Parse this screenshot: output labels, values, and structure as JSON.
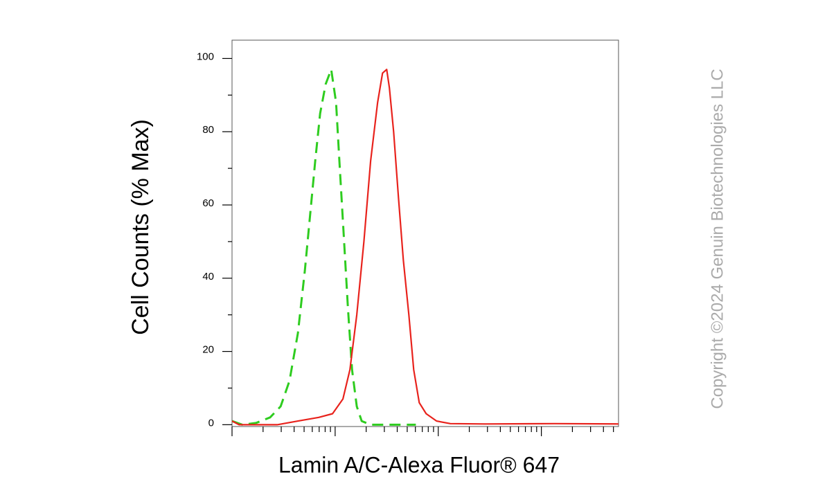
{
  "chart_data": {
    "type": "histogram-overlay",
    "y_label": "Cell Counts (% Max)",
    "x_label": "Lamin A/C-Alexa Fluor® 647",
    "copyright": "Copyright ©2024 Genuin Biotechnologies LLC",
    "x_log": true,
    "xlim": [
      1,
      5600
    ],
    "xticks": [
      1,
      10,
      100,
      1000
    ],
    "xminorticks": [
      2,
      3,
      4,
      5,
      6,
      7,
      8,
      9,
      20,
      30,
      40,
      50,
      60,
      70,
      80,
      90,
      200,
      300,
      400,
      500,
      600,
      700,
      800,
      900,
      2000,
      3000,
      4000,
      5000
    ],
    "ylim": [
      -0.5,
      105
    ],
    "yticks": [
      0,
      20,
      40,
      60,
      80,
      100
    ],
    "yminorticks": [
      10,
      30,
      50,
      70,
      90
    ],
    "series": [
      {
        "color": "#2ecc1f",
        "dash": true,
        "x": [
          1,
          1.26,
          1.72,
          2.34,
          2.96,
          3.61,
          4.35,
          5.08,
          5.75,
          6.41,
          7.15,
          8.09,
          9.16,
          10.2,
          11.0,
          12.1,
          13.3,
          14.6,
          16.2,
          18.1,
          22.1,
          60.6
        ],
        "values": [
          1,
          0,
          0.5,
          2,
          5,
          12,
          25,
          42,
          58,
          72,
          85,
          93,
          97,
          88,
          72,
          52,
          32,
          15,
          5,
          1,
          0,
          0
        ]
      },
      {
        "color": "#e8221c",
        "dash": false,
        "x": [
          1,
          1.17,
          2.74,
          4.35,
          6.93,
          9.44,
          11.9,
          13.9,
          16.2,
          19.0,
          22.1,
          25.8,
          28.8,
          31.6,
          33.6,
          36.9,
          41.1,
          45.8,
          51.9,
          57.8,
          65.4,
          76.4,
          96.4,
          131,
          285,
          1340,
          5600
        ],
        "values": [
          1,
          0,
          0,
          1,
          2,
          3,
          7,
          15,
          30,
          50,
          72,
          88,
          96,
          97,
          92,
          80,
          62,
          45,
          30,
          15,
          6,
          3,
          1,
          0.3,
          0.2,
          0.3,
          0.2
        ]
      }
    ]
  }
}
